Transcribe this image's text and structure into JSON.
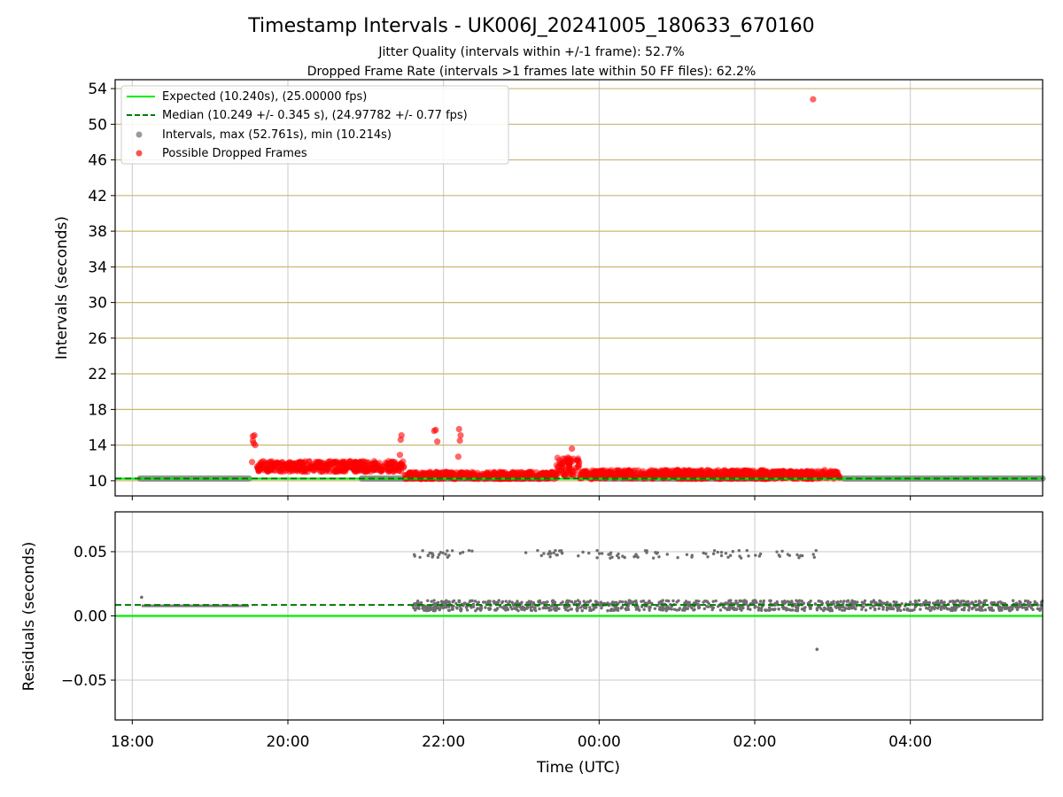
{
  "figure": {
    "title": "Timestamp Intervals - UK006J_20241005_180633_670160",
    "subtitle1": "Jitter Quality (intervals within +/-1 frame): 52.7%",
    "subtitle2": "Dropped Frame Rate (intervals >1 frames late within 50 FF files): 62.2%"
  },
  "chart_data": [
    {
      "type": "scatter",
      "panel": "top",
      "ylabel": "Intervals (seconds)",
      "xlabel": "",
      "x_unit": "hours from 18:00 UTC (values >6 wrap past midnight)",
      "xlim": [
        -0.22,
        11.7
      ],
      "ylim": [
        8.3,
        55.0
      ],
      "yticks": [
        10,
        14,
        18,
        22,
        26,
        30,
        34,
        38,
        42,
        46,
        50,
        54
      ],
      "xticks": [
        0,
        2,
        4,
        6,
        8,
        10
      ],
      "xtick_labels": [
        "18:00",
        "20:00",
        "22:00",
        "00:00",
        "02:00",
        "04:00"
      ],
      "grid": "horizontal olive lines + vertical gray lines",
      "legend_position": "top-left",
      "colors": {
        "expected": "#00ee00",
        "median": "#007a00",
        "intervals": "#808080",
        "dropped": "#ff0000",
        "grid_h": "#c8b872",
        "grid_v": "#c8c8c8"
      },
      "legend": [
        {
          "label": "Expected (10.240s), (25.00000 fps)",
          "kind": "line",
          "color": "#00ee00"
        },
        {
          "label": "Median (10.249 +/- 0.345 s), (24.97782 +/- 0.77 fps)",
          "kind": "dashed",
          "color": "#007a00"
        },
        {
          "label": "Intervals, max (52.761s), min (10.214s)",
          "kind": "dot",
          "color": "#9a9a9a"
        },
        {
          "label": "Possible Dropped Frames",
          "kind": "dot",
          "color": "#ff5050"
        }
      ],
      "expected_value": 10.24,
      "median_value": 10.249,
      "series": [
        {
          "name": "Intervals, max (52.761s), min (10.214s)",
          "segments": [
            [
              0.1,
              1.5,
              10.25
            ],
            [
              2.95,
              5.35,
              10.25
            ],
            [
              6.0,
              8.2,
              10.25
            ],
            [
              9.15,
              11.7,
              10.25
            ]
          ]
        },
        {
          "name": "Possible Dropped Frames",
          "dense_bands": [
            {
              "x": [
                1.6,
                3.5
              ],
              "y": [
                11.0,
                12.2
              ]
            },
            {
              "x": [
                3.5,
                5.45
              ],
              "y": [
                10.2,
                11.0
              ]
            },
            {
              "x": [
                5.45,
                5.75
              ],
              "y": [
                10.5,
                12.6
              ]
            },
            {
              "x": [
                5.75,
                8.2
              ],
              "y": [
                10.2,
                11.2
              ]
            },
            {
              "x": [
                8.2,
                9.1
              ],
              "y": [
                10.2,
                11.1
              ]
            }
          ],
          "points": [
            [
              1.55,
              15.0
            ],
            [
              1.55,
              14.5
            ],
            [
              1.56,
              14.2
            ],
            [
              1.57,
              15.1
            ],
            [
              1.58,
              14.0
            ],
            [
              1.54,
              12.1
            ],
            [
              3.45,
              14.6
            ],
            [
              3.46,
              15.1
            ],
            [
              3.44,
              12.9
            ],
            [
              3.9,
              15.7
            ],
            [
              3.92,
              14.4
            ],
            [
              3.88,
              15.6
            ],
            [
              4.2,
              15.8
            ],
            [
              4.22,
              15.1
            ],
            [
              4.21,
              14.5
            ],
            [
              4.19,
              12.7
            ],
            [
              5.65,
              13.6
            ],
            [
              5.6,
              12.6
            ],
            [
              8.9,
              11.2
            ],
            [
              8.6,
              11.0
            ],
            [
              8.75,
              52.8
            ]
          ]
        }
      ]
    },
    {
      "type": "scatter",
      "panel": "bottom",
      "ylabel": "Residuals (seconds)",
      "xlabel": "Time (UTC)",
      "xlim": [
        -0.22,
        11.7
      ],
      "ylim": [
        -0.081,
        0.081
      ],
      "yticks": [
        -0.05,
        0.0,
        0.05
      ],
      "ytick_labels": [
        "−0.05",
        "0.00",
        "0.05"
      ],
      "xticks": [
        0,
        2,
        4,
        6,
        8,
        10
      ],
      "xtick_labels": [
        "18:00",
        "20:00",
        "22:00",
        "00:00",
        "02:00",
        "04:00"
      ],
      "expected_value": 0.0,
      "median_value": 0.0085,
      "series": [
        {
          "name": "Residuals",
          "segments": [
            [
              0.12,
              1.5,
              0.0078
            ]
          ],
          "dense_bands": [
            {
              "x": [
                3.6,
                11.7
              ],
              "y": [
                0.004,
                0.012
              ]
            }
          ],
          "sparse_band": {
            "x": [
              3.6,
              8.8
            ],
            "y": [
              0.045,
              0.051
            ]
          },
          "points": [
            [
              0.12,
              0.0145
            ],
            [
              8.8,
              -0.026
            ]
          ]
        }
      ]
    }
  ]
}
